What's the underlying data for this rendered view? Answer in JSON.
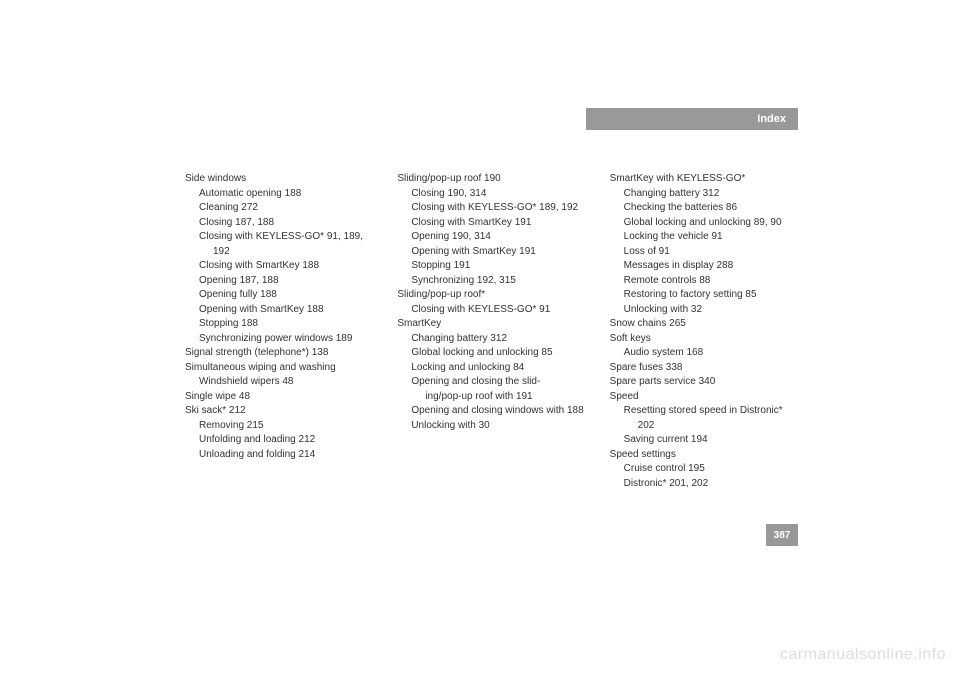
{
  "header": {
    "title": "Index"
  },
  "page_number": "387",
  "watermark": "carmanualsonline.info",
  "columns": [
    {
      "lines": [
        {
          "text": "Side windows",
          "indent": 0
        },
        {
          "text": "Automatic opening 188",
          "indent": 1
        },
        {
          "text": "Cleaning 272",
          "indent": 1
        },
        {
          "text": "Closing 187, 188",
          "indent": 1
        },
        {
          "text": "Closing with KEYLESS-GO* 91, 189,",
          "indent": 1
        },
        {
          "text": "192",
          "indent": 2
        },
        {
          "text": "Closing with SmartKey 188",
          "indent": 1
        },
        {
          "text": "Opening 187, 188",
          "indent": 1
        },
        {
          "text": "Opening fully 188",
          "indent": 1
        },
        {
          "text": "Opening with SmartKey 188",
          "indent": 1
        },
        {
          "text": "Stopping 188",
          "indent": 1
        },
        {
          "text": "Synchronizing power windows 189",
          "indent": 1
        },
        {
          "text": "Signal strength (telephone*) 138",
          "indent": 0
        },
        {
          "text": "Simultaneous wiping and washing",
          "indent": 0
        },
        {
          "text": "Windshield wipers 48",
          "indent": 1
        },
        {
          "text": "Single wipe 48",
          "indent": 0
        },
        {
          "text": "Ski sack* 212",
          "indent": 0
        },
        {
          "text": "Removing 215",
          "indent": 1
        },
        {
          "text": "Unfolding and loading 212",
          "indent": 1
        },
        {
          "text": "Unloading and folding 214",
          "indent": 1
        }
      ]
    },
    {
      "lines": [
        {
          "text": "Sliding/pop-up roof 190",
          "indent": 0
        },
        {
          "text": "Closing 190, 314",
          "indent": 1
        },
        {
          "text": "Closing with KEYLESS-GO* 189, 192",
          "indent": 1
        },
        {
          "text": "Closing with SmartKey 191",
          "indent": 1
        },
        {
          "text": "Opening 190, 314",
          "indent": 1
        },
        {
          "text": "Opening with SmartKey 191",
          "indent": 1
        },
        {
          "text": "Stopping 191",
          "indent": 1
        },
        {
          "text": "Synchronizing 192, 315",
          "indent": 1
        },
        {
          "text": "Sliding/pop-up roof*",
          "indent": 0
        },
        {
          "text": "Closing with KEYLESS-GO* 91",
          "indent": 1
        },
        {
          "text": "SmartKey",
          "indent": 0
        },
        {
          "text": "Changing battery 312",
          "indent": 1
        },
        {
          "text": "Global locking and unlocking 85",
          "indent": 1
        },
        {
          "text": "Locking and unlocking 84",
          "indent": 1
        },
        {
          "text": "Opening and closing the slid-",
          "indent": 1
        },
        {
          "text": "ing/pop-up roof with 191",
          "indent": 2
        },
        {
          "text": "Opening and closing windows with 188",
          "indent": 1
        },
        {
          "text": "Unlocking with 30",
          "indent": 1
        }
      ]
    },
    {
      "lines": [
        {
          "text": "SmartKey with KEYLESS-GO*",
          "indent": 0
        },
        {
          "text": "Changing battery 312",
          "indent": 1
        },
        {
          "text": "Checking the batteries 86",
          "indent": 1
        },
        {
          "text": "Global locking and unlocking 89, 90",
          "indent": 1
        },
        {
          "text": "Locking the vehicle 91",
          "indent": 1
        },
        {
          "text": "Loss of 91",
          "indent": 1
        },
        {
          "text": "Messages in display 288",
          "indent": 1
        },
        {
          "text": "Remote controls 88",
          "indent": 1
        },
        {
          "text": "Restoring to factory setting 85",
          "indent": 1
        },
        {
          "text": "Unlocking with 32",
          "indent": 1
        },
        {
          "text": "Snow chains 265",
          "indent": 0
        },
        {
          "text": "Soft keys",
          "indent": 0
        },
        {
          "text": "Audio system 168",
          "indent": 1
        },
        {
          "text": "Spare fuses 338",
          "indent": 0
        },
        {
          "text": "Spare parts service 340",
          "indent": 0
        },
        {
          "text": "Speed",
          "indent": 0
        },
        {
          "text": "Resetting stored speed in Distronic*",
          "indent": 1
        },
        {
          "text": "202",
          "indent": 2
        },
        {
          "text": "Saving current 194",
          "indent": 1
        },
        {
          "text": "Speed settings",
          "indent": 0
        },
        {
          "text": "Cruise control 195",
          "indent": 1
        },
        {
          "text": "Distronic* 201, 202",
          "indent": 1
        }
      ]
    }
  ]
}
